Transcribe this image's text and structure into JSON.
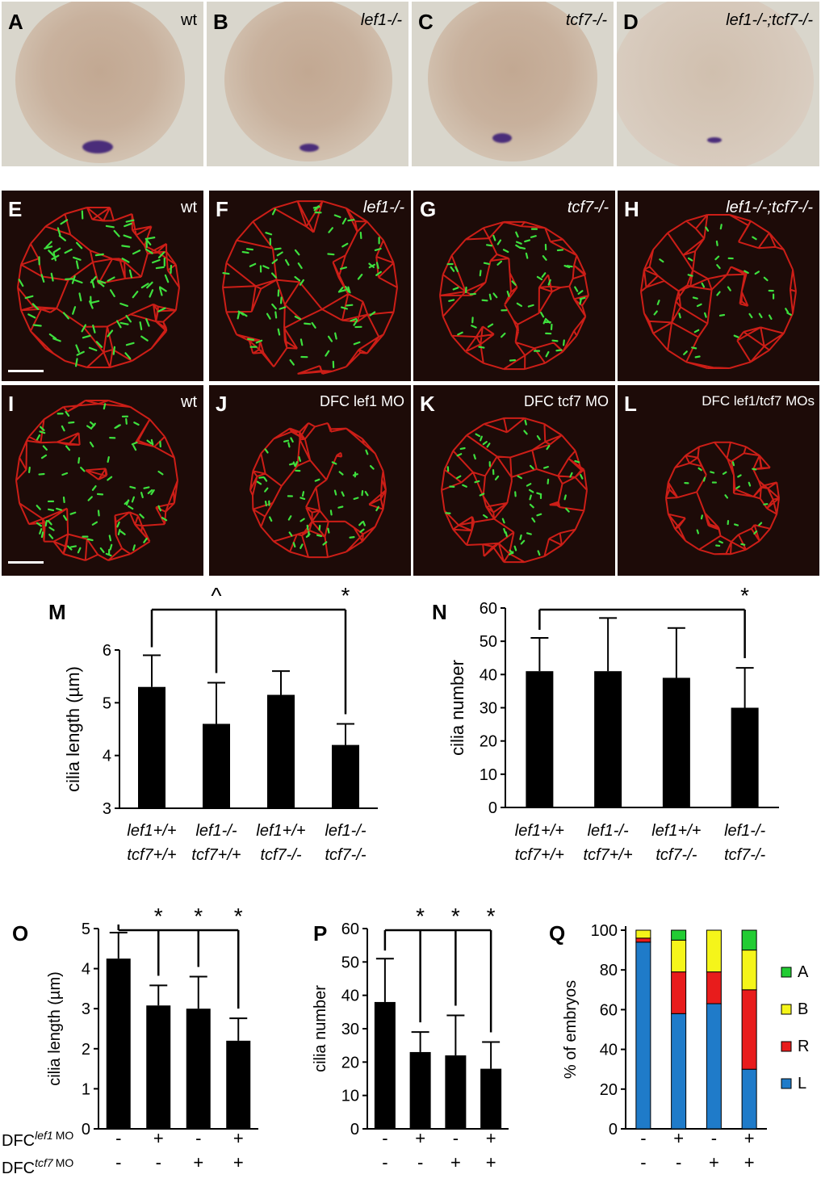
{
  "top_row": [
    {
      "letter": "A",
      "label": "wt"
    },
    {
      "letter": "B",
      "label": "lef1-/-"
    },
    {
      "letter": "C",
      "label": "tcf7-/-"
    },
    {
      "letter": "D",
      "label": "lef1-/-;tcf7-/-"
    }
  ],
  "middle_row": [
    {
      "letter": "E",
      "label": "wt"
    },
    {
      "letter": "F",
      "label": "lef1-/-"
    },
    {
      "letter": "G",
      "label": "tcf7-/-"
    },
    {
      "letter": "H",
      "label": "lef1-/-;tcf7-/-"
    }
  ],
  "bottom_row": [
    {
      "letter": "I",
      "label": "wt"
    },
    {
      "letter": "J",
      "label": "DFC lef1 MO"
    },
    {
      "letter": "K",
      "label": "DFC tcf7 MO"
    },
    {
      "letter": "L",
      "label": "DFC lef1/tcf7 MOs"
    }
  ],
  "chart_data": [
    {
      "panel": "M",
      "type": "bar",
      "ylabel": "cilia length (µm)",
      "ylim": [
        3,
        6
      ],
      "yticks": [
        "3",
        "4",
        "5",
        "6"
      ],
      "categories": [
        [
          "lef1+/+",
          "tcf7+/+"
        ],
        [
          "lef1-/-",
          "tcf7+/+"
        ],
        [
          "lef1+/+",
          "tcf7-/-"
        ],
        [
          "lef1-/-",
          "tcf7-/-"
        ]
      ],
      "values": [
        5.3,
        4.6,
        5.15,
        4.2
      ],
      "errors": [
        0.6,
        0.78,
        0.45,
        0.4
      ],
      "annotations": [
        "",
        "^",
        "",
        "*"
      ]
    },
    {
      "panel": "N",
      "type": "bar",
      "ylabel": "cilia number",
      "ylim": [
        0,
        60
      ],
      "yticks": [
        "0",
        "10",
        "20",
        "30",
        "40",
        "50",
        "60"
      ],
      "categories": [
        [
          "lef1+/+",
          "tcf7+/+"
        ],
        [
          "lef1-/-",
          "tcf7+/+"
        ],
        [
          "lef1+/+",
          "tcf7-/-"
        ],
        [
          "lef1-/-",
          "tcf7-/-"
        ]
      ],
      "values": [
        41,
        41,
        39,
        30
      ],
      "errors": [
        10,
        16,
        15,
        12
      ],
      "annotations": [
        "",
        "",
        "",
        "*"
      ]
    },
    {
      "panel": "O",
      "type": "bar",
      "ylabel": "cilia length (µm)",
      "ylim": [
        0,
        5
      ],
      "yticks": [
        "0",
        "1",
        "2",
        "3",
        "4",
        "5"
      ],
      "values": [
        4.25,
        3.08,
        3.0,
        2.2
      ],
      "errors": [
        0.65,
        0.5,
        0.8,
        0.56
      ],
      "annotations": [
        "",
        "*",
        "*",
        "*"
      ]
    },
    {
      "panel": "P",
      "type": "bar",
      "ylabel": "cilia number",
      "ylim": [
        0,
        60
      ],
      "yticks": [
        "0",
        "10",
        "20",
        "30",
        "40",
        "50",
        "60"
      ],
      "values": [
        38,
        23,
        22,
        18
      ],
      "errors": [
        13,
        6,
        12,
        8
      ],
      "annotations": [
        "",
        "*",
        "*",
        "*"
      ]
    },
    {
      "panel": "Q",
      "type": "stacked-bar",
      "ylabel": "% of embryos",
      "ylim": [
        0,
        100
      ],
      "yticks": [
        "0",
        "20",
        "40",
        "60",
        "80",
        "100"
      ],
      "series": [
        {
          "name": "L",
          "color": "#1f7bc9",
          "values": [
            94,
            58,
            63,
            30
          ]
        },
        {
          "name": "R",
          "color": "#e81c1c",
          "values": [
            2,
            21,
            16,
            40
          ]
        },
        {
          "name": "B",
          "color": "#f5f51a",
          "values": [
            4,
            16,
            21,
            20
          ]
        },
        {
          "name": "A",
          "color": "#22cc33",
          "values": [
            0,
            5,
            0,
            10
          ]
        }
      ],
      "legend_order": [
        "A",
        "B",
        "R",
        "L"
      ]
    }
  ],
  "treatment_rows": {
    "row1_label": "DFC lef1 MO",
    "row2_label": "DFC tcf7 MO",
    "row1": [
      "-",
      "+",
      "-",
      "+"
    ],
    "row2": [
      "-",
      "-",
      "+",
      "+"
    ]
  }
}
